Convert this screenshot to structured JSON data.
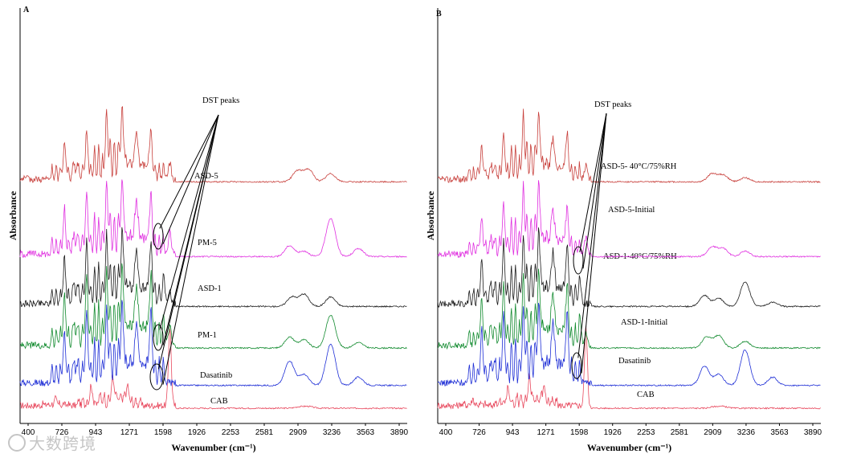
{
  "chart_data": [
    {
      "type": "line",
      "panel": "A",
      "xlabel": "Wavenumber (cm⁻¹)",
      "ylabel": "Absorbance",
      "ticks": [
        "400",
        "726",
        "943",
        "1271",
        "1598",
        "1926",
        "2253",
        "2581",
        "2909",
        "3236",
        "3563",
        "3890"
      ],
      "xlim": [
        400,
        3890
      ],
      "series": [
        {
          "name": "CAB",
          "color": "#e8495e",
          "offset": 0.0,
          "peaks": [
            [
              720,
              0.18
            ],
            [
              1040,
              0.55
            ],
            [
              1235,
              0.8
            ],
            [
              1370,
              0.55
            ],
            [
              1750,
              2.9
            ],
            [
              2920,
              0.05
            ],
            [
              3000,
              0.06
            ]
          ]
        },
        {
          "name": "Dasatinib",
          "color": "#1f2fd6",
          "offset": 1.0,
          "peaks": [
            [
              800,
              1.4
            ],
            [
              1000,
              1.8
            ],
            [
              1180,
              2.0
            ],
            [
              1320,
              2.1
            ],
            [
              1450,
              1.6
            ],
            [
              1580,
              1.9
            ],
            [
              2830,
              0.9
            ],
            [
              2960,
              0.4
            ],
            [
              3200,
              1.5
            ],
            [
              3450,
              0.3
            ]
          ]
        },
        {
          "name": "PM-1",
          "color": "#118a2e",
          "offset": 2.0,
          "peaks": [
            [
              800,
              1.4
            ],
            [
              1000,
              1.8
            ],
            [
              1180,
              2.0
            ],
            [
              1320,
              2.1
            ],
            [
              1450,
              1.6
            ],
            [
              1580,
              1.9
            ],
            [
              1700,
              0.5
            ],
            [
              1750,
              0.7
            ],
            [
              2830,
              0.4
            ],
            [
              2960,
              0.3
            ],
            [
              3200,
              1.2
            ],
            [
              3450,
              0.2
            ]
          ]
        },
        {
          "name": "ASD-1",
          "color": "#1a1a1a",
          "offset": 3.0,
          "peaks": [
            [
              800,
              1.2
            ],
            [
              1000,
              1.6
            ],
            [
              1180,
              1.8
            ],
            [
              1320,
              1.9
            ],
            [
              1450,
              1.4
            ],
            [
              1580,
              1.6
            ],
            [
              1700,
              0.6
            ],
            [
              1750,
              0.4
            ],
            [
              2850,
              0.35
            ],
            [
              2960,
              0.45
            ],
            [
              3200,
              0.35
            ]
          ]
        },
        {
          "name": "PM-5",
          "color": "#e030e0",
          "offset": 4.0,
          "peaks": [
            [
              800,
              1.2
            ],
            [
              1000,
              1.6
            ],
            [
              1180,
              1.9
            ],
            [
              1320,
              2.0
            ],
            [
              1450,
              1.4
            ],
            [
              1580,
              1.6
            ],
            [
              1750,
              0.8
            ],
            [
              2830,
              0.4
            ],
            [
              2960,
              0.2
            ],
            [
              3200,
              1.4
            ],
            [
              3450,
              0.3
            ]
          ]
        },
        {
          "name": "ASD-5",
          "color": "#c8403c",
          "offset": 5.0,
          "peaks": [
            [
              800,
              1.0
            ],
            [
              1000,
              1.3
            ],
            [
              1180,
              1.8
            ],
            [
              1320,
              1.9
            ],
            [
              1450,
              1.2
            ],
            [
              1580,
              1.3
            ],
            [
              1750,
              0.6
            ],
            [
              2900,
              0.4
            ],
            [
              3000,
              0.45
            ],
            [
              3200,
              0.3
            ]
          ]
        }
      ],
      "annotation": "DST peaks"
    },
    {
      "type": "line",
      "panel": "B",
      "xlabel": "Wavenumber (cm⁻¹)",
      "ylabel": "Absorbance",
      "ticks": [
        "400",
        "726",
        "943",
        "1271",
        "1598",
        "1926",
        "2253",
        "2581",
        "2909",
        "3236",
        "3563",
        "3890"
      ],
      "xlim": [
        400,
        3890
      ],
      "series": [
        {
          "name": "CAB",
          "color": "#e8495e",
          "offset": 0.0,
          "peaks": [
            [
              720,
              0.18
            ],
            [
              1040,
              0.5
            ],
            [
              1235,
              0.75
            ],
            [
              1370,
              0.55
            ],
            [
              1750,
              2.9
            ],
            [
              2920,
              0.05
            ],
            [
              3000,
              0.06
            ]
          ]
        },
        {
          "name": "Dasatinib",
          "color": "#1f2fd6",
          "offset": 1.0,
          "peaks": [
            [
              800,
              1.4
            ],
            [
              1000,
              1.8
            ],
            [
              1180,
              2.0
            ],
            [
              1320,
              2.1
            ],
            [
              1450,
              1.6
            ],
            [
              1580,
              1.9
            ],
            [
              2830,
              0.7
            ],
            [
              2960,
              0.4
            ],
            [
              3200,
              1.3
            ],
            [
              3450,
              0.3
            ]
          ]
        },
        {
          "name": "ASD-1-Initial",
          "color": "#118a2e",
          "offset": 2.0,
          "peaks": [
            [
              800,
              1.2
            ],
            [
              1000,
              1.6
            ],
            [
              1180,
              1.8
            ],
            [
              1320,
              1.9
            ],
            [
              1450,
              1.4
            ],
            [
              1580,
              1.6
            ],
            [
              1700,
              0.5
            ],
            [
              1750,
              0.4
            ],
            [
              2850,
              0.4
            ],
            [
              2960,
              0.45
            ],
            [
              3200,
              0.25
            ]
          ]
        },
        {
          "name": "ASD-1-40°C/75%RH",
          "color": "#1a1a1a",
          "offset": 3.0,
          "peaks": [
            [
              800,
              1.2
            ],
            [
              1000,
              1.6
            ],
            [
              1180,
              1.8
            ],
            [
              1320,
              1.9
            ],
            [
              1450,
              1.4
            ],
            [
              1580,
              1.6
            ],
            [
              1700,
              0.5
            ],
            [
              2830,
              0.4
            ],
            [
              2960,
              0.3
            ],
            [
              3200,
              0.9
            ],
            [
              3450,
              0.15
            ]
          ]
        },
        {
          "name": "ASD-5-Initial",
          "color": "#e030e0",
          "offset": 4.0,
          "peaks": [
            [
              800,
              1.0
            ],
            [
              1000,
              1.3
            ],
            [
              1180,
              1.8
            ],
            [
              1320,
              1.9
            ],
            [
              1450,
              1.2
            ],
            [
              1580,
              1.3
            ],
            [
              1750,
              0.6
            ],
            [
              2900,
              0.35
            ],
            [
              3000,
              0.3
            ],
            [
              3200,
              0.2
            ]
          ]
        },
        {
          "name": "ASD-5- 40°C/75%RH",
          "color": "#c8403c",
          "offset": 5.0,
          "peaks": [
            [
              800,
              0.9
            ],
            [
              1000,
              1.2
            ],
            [
              1180,
              1.7
            ],
            [
              1320,
              1.8
            ],
            [
              1450,
              1.1
            ],
            [
              1580,
              1.2
            ],
            [
              1750,
              0.5
            ],
            [
              2900,
              0.3
            ],
            [
              3000,
              0.25
            ],
            [
              3200,
              0.15
            ]
          ]
        }
      ],
      "annotation": "DST peaks"
    }
  ],
  "watermark": "大数跨境"
}
